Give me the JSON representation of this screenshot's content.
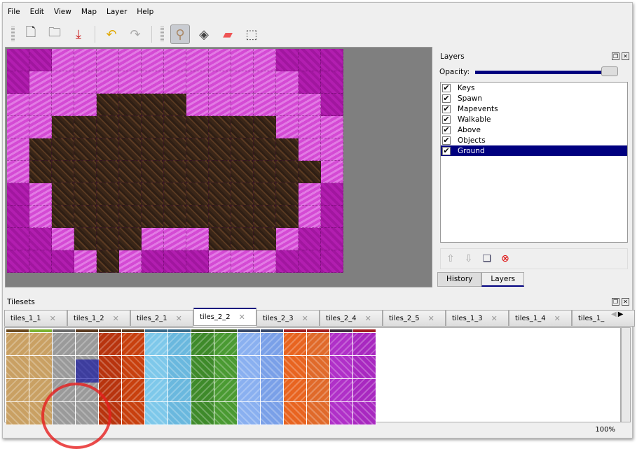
{
  "menu": [
    "File",
    "Edit",
    "View",
    "Map",
    "Layer",
    "Help"
  ],
  "toolbar": [
    {
      "name": "new-icon",
      "glyph": "🗋"
    },
    {
      "name": "open-icon",
      "glyph": "🗀"
    },
    {
      "name": "save-icon",
      "glyph": "⤓"
    },
    {
      "name": "undo-icon",
      "glyph": "↶"
    },
    {
      "name": "redo-icon",
      "glyph": "↷"
    },
    {
      "name": "stamp-brush-icon",
      "glyph": "⚲",
      "active": true
    },
    {
      "name": "bucket-fill-icon",
      "glyph": "◈"
    },
    {
      "name": "eraser-icon",
      "glyph": "▰"
    },
    {
      "name": "rect-select-icon",
      "glyph": "⬚"
    }
  ],
  "map": {
    "rows": [
      "MMPPPPPPPPPPMMM",
      "MPPPPPPPPPPPPMM",
      "PPPPDDDDPPPPPPM",
      "PPDDDDDDDDDDPPP",
      "PDDDDDDDDDDDDPP",
      "PDDDDDDDDDDDDDP",
      "MPDDDDDDDDDDDPM",
      "MPDDDDDDDDDDDPM",
      "MMPDDDPPPDDDPMM",
      "MMMPDPMMMPPPMMM"
    ]
  },
  "layers_panel": {
    "title": "Layers",
    "opacity_label": "Opacity:",
    "opacity": 1.0,
    "layers": [
      {
        "name": "Keys",
        "visible": true
      },
      {
        "name": "Spawn",
        "visible": true
      },
      {
        "name": "Mapevents",
        "visible": true
      },
      {
        "name": "Walkable",
        "visible": true
      },
      {
        "name": "Above",
        "visible": true
      },
      {
        "name": "Objects",
        "visible": true
      },
      {
        "name": "Ground",
        "visible": true,
        "selected": true
      }
    ],
    "tabs": [
      "History",
      "Layers"
    ],
    "active_tab": "Layers"
  },
  "tilesets": {
    "title": "Tilesets",
    "tabs": [
      "tiles_1_1",
      "tiles_1_2",
      "tiles_2_1",
      "tiles_2_2",
      "tiles_2_3",
      "tiles_2_4",
      "tiles_2_5",
      "tiles_1_3",
      "tiles_1_4",
      "tiles_1_"
    ],
    "active": "tiles_2_2",
    "column_colors": [
      "#c9a063",
      "#c9a063",
      "#9a9a9a",
      "#9a9a9a",
      "#b8340e",
      "#c8400e",
      "#7ec8ea",
      "#6ab8de",
      "#3e8a2a",
      "#4a9a32",
      "#8ab0f0",
      "#7aa0e8",
      "#e86420",
      "#e06a2a",
      "#b030c8",
      "#a828c0"
    ],
    "top_colors": [
      "#6a4a20",
      "#7ab030",
      "#6a6a6a",
      "#5a3a20",
      "#5a3a20",
      "#5a3a20",
      "#3a6a8a",
      "#3a6a8a",
      "#3a5a20",
      "#3a5a20",
      "#3a4a6a",
      "#3a4a6a",
      "#a02020",
      "#a02020",
      "#403040",
      "#a02020"
    ]
  },
  "status": {
    "zoom": "100%"
  }
}
